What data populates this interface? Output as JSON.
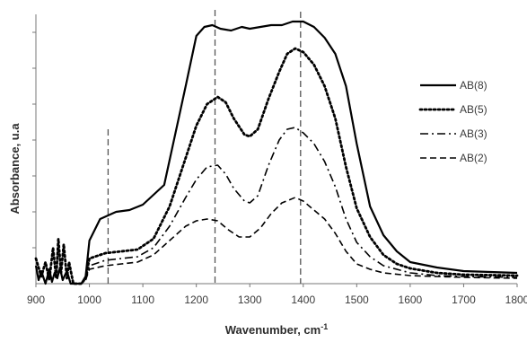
{
  "chart_data": {
    "type": "line",
    "title": "",
    "xlabel": "Wavenumber, cm",
    "xlabel_superscript": "-1",
    "ylabel": "Absorbance, u.a",
    "xlim": [
      900,
      1800
    ],
    "x_ticks": [
      900,
      1000,
      1100,
      1200,
      1300,
      1400,
      1500,
      1600,
      1700,
      1800
    ],
    "y_ticks_labeled": false,
    "ylim": [
      0,
      1.5
    ],
    "y_tick_marks": [
      0.2,
      0.4,
      0.6,
      0.8,
      1.0,
      1.2,
      1.4
    ],
    "grid": false,
    "legend_position": "right",
    "reference_lines_x": [
      1035,
      1235,
      1395
    ],
    "series": [
      {
        "name": "AB(8)",
        "line_style": "solid",
        "color": "#000000",
        "points": [
          [
            900,
            0.1
          ],
          [
            905,
            0.02
          ],
          [
            910,
            0.07
          ],
          [
            918,
            0.0
          ],
          [
            925,
            0.08
          ],
          [
            930,
            0.01
          ],
          [
            935,
            0.06
          ],
          [
            940,
            0.03
          ],
          [
            945,
            0.09
          ],
          [
            950,
            0.02
          ],
          [
            958,
            0.07
          ],
          [
            965,
            0.0
          ],
          [
            975,
            0.0
          ],
          [
            985,
            0.0
          ],
          [
            993,
            0.04
          ],
          [
            1000,
            0.24
          ],
          [
            1020,
            0.36
          ],
          [
            1050,
            0.4
          ],
          [
            1075,
            0.41
          ],
          [
            1100,
            0.44
          ],
          [
            1140,
            0.55
          ],
          [
            1180,
            1.1
          ],
          [
            1200,
            1.38
          ],
          [
            1215,
            1.43
          ],
          [
            1230,
            1.44
          ],
          [
            1245,
            1.42
          ],
          [
            1265,
            1.41
          ],
          [
            1285,
            1.43
          ],
          [
            1300,
            1.42
          ],
          [
            1320,
            1.43
          ],
          [
            1340,
            1.44
          ],
          [
            1360,
            1.44
          ],
          [
            1380,
            1.46
          ],
          [
            1400,
            1.46
          ],
          [
            1420,
            1.43
          ],
          [
            1440,
            1.37
          ],
          [
            1460,
            1.28
          ],
          [
            1480,
            1.1
          ],
          [
            1500,
            0.78
          ],
          [
            1525,
            0.43
          ],
          [
            1550,
            0.27
          ],
          [
            1575,
            0.18
          ],
          [
            1600,
            0.12
          ],
          [
            1650,
            0.09
          ],
          [
            1700,
            0.07
          ],
          [
            1750,
            0.065
          ],
          [
            1800,
            0.06
          ]
        ]
      },
      {
        "name": "AB(5)",
        "line_style": "dotted",
        "color": "#000000",
        "points": [
          [
            900,
            0.14
          ],
          [
            910,
            0.04
          ],
          [
            918,
            0.12
          ],
          [
            925,
            0.02
          ],
          [
            932,
            0.2
          ],
          [
            938,
            0.03
          ],
          [
            942,
            0.25
          ],
          [
            947,
            0.06
          ],
          [
            952,
            0.22
          ],
          [
            958,
            0.03
          ],
          [
            962,
            0.12
          ],
          [
            970,
            0.0
          ],
          [
            985,
            0.0
          ],
          [
            993,
            0.03
          ],
          [
            1000,
            0.14
          ],
          [
            1030,
            0.17
          ],
          [
            1060,
            0.18
          ],
          [
            1090,
            0.19
          ],
          [
            1120,
            0.25
          ],
          [
            1150,
            0.43
          ],
          [
            1180,
            0.7
          ],
          [
            1200,
            0.88
          ],
          [
            1220,
            1.0
          ],
          [
            1240,
            1.04
          ],
          [
            1255,
            1.01
          ],
          [
            1270,
            0.92
          ],
          [
            1290,
            0.83
          ],
          [
            1300,
            0.82
          ],
          [
            1315,
            0.86
          ],
          [
            1335,
            1.03
          ],
          [
            1355,
            1.18
          ],
          [
            1370,
            1.28
          ],
          [
            1385,
            1.31
          ],
          [
            1400,
            1.29
          ],
          [
            1420,
            1.22
          ],
          [
            1440,
            1.1
          ],
          [
            1460,
            0.92
          ],
          [
            1480,
            0.65
          ],
          [
            1500,
            0.42
          ],
          [
            1525,
            0.26
          ],
          [
            1550,
            0.16
          ],
          [
            1575,
            0.11
          ],
          [
            1600,
            0.085
          ],
          [
            1650,
            0.06
          ],
          [
            1700,
            0.05
          ],
          [
            1800,
            0.045
          ]
        ]
      },
      {
        "name": "AB(3)",
        "line_style": "dash-dot",
        "color": "#000000",
        "points": [
          [
            993,
            0.02
          ],
          [
            1000,
            0.1
          ],
          [
            1030,
            0.13
          ],
          [
            1060,
            0.14
          ],
          [
            1090,
            0.15
          ],
          [
            1120,
            0.2
          ],
          [
            1150,
            0.32
          ],
          [
            1180,
            0.48
          ],
          [
            1200,
            0.58
          ],
          [
            1220,
            0.65
          ],
          [
            1240,
            0.66
          ],
          [
            1255,
            0.61
          ],
          [
            1270,
            0.53
          ],
          [
            1290,
            0.46
          ],
          [
            1300,
            0.45
          ],
          [
            1315,
            0.49
          ],
          [
            1335,
            0.66
          ],
          [
            1355,
            0.8
          ],
          [
            1370,
            0.86
          ],
          [
            1385,
            0.87
          ],
          [
            1400,
            0.84
          ],
          [
            1420,
            0.78
          ],
          [
            1440,
            0.68
          ],
          [
            1460,
            0.54
          ],
          [
            1480,
            0.36
          ],
          [
            1500,
            0.23
          ],
          [
            1525,
            0.15
          ],
          [
            1550,
            0.1
          ],
          [
            1600,
            0.06
          ],
          [
            1650,
            0.045
          ],
          [
            1700,
            0.04
          ],
          [
            1800,
            0.035
          ]
        ]
      },
      {
        "name": "AB(2)",
        "line_style": "dashed",
        "color": "#000000",
        "points": [
          [
            993,
            0.02
          ],
          [
            1000,
            0.08
          ],
          [
            1030,
            0.1
          ],
          [
            1060,
            0.11
          ],
          [
            1090,
            0.12
          ],
          [
            1120,
            0.16
          ],
          [
            1150,
            0.24
          ],
          [
            1180,
            0.32
          ],
          [
            1200,
            0.35
          ],
          [
            1220,
            0.36
          ],
          [
            1240,
            0.35
          ],
          [
            1260,
            0.3
          ],
          [
            1280,
            0.26
          ],
          [
            1300,
            0.26
          ],
          [
            1320,
            0.31
          ],
          [
            1340,
            0.39
          ],
          [
            1360,
            0.45
          ],
          [
            1385,
            0.48
          ],
          [
            1400,
            0.46
          ],
          [
            1420,
            0.41
          ],
          [
            1440,
            0.36
          ],
          [
            1460,
            0.28
          ],
          [
            1480,
            0.18
          ],
          [
            1500,
            0.11
          ],
          [
            1525,
            0.08
          ],
          [
            1550,
            0.06
          ],
          [
            1600,
            0.045
          ],
          [
            1700,
            0.035
          ],
          [
            1800,
            0.03
          ]
        ]
      }
    ]
  }
}
